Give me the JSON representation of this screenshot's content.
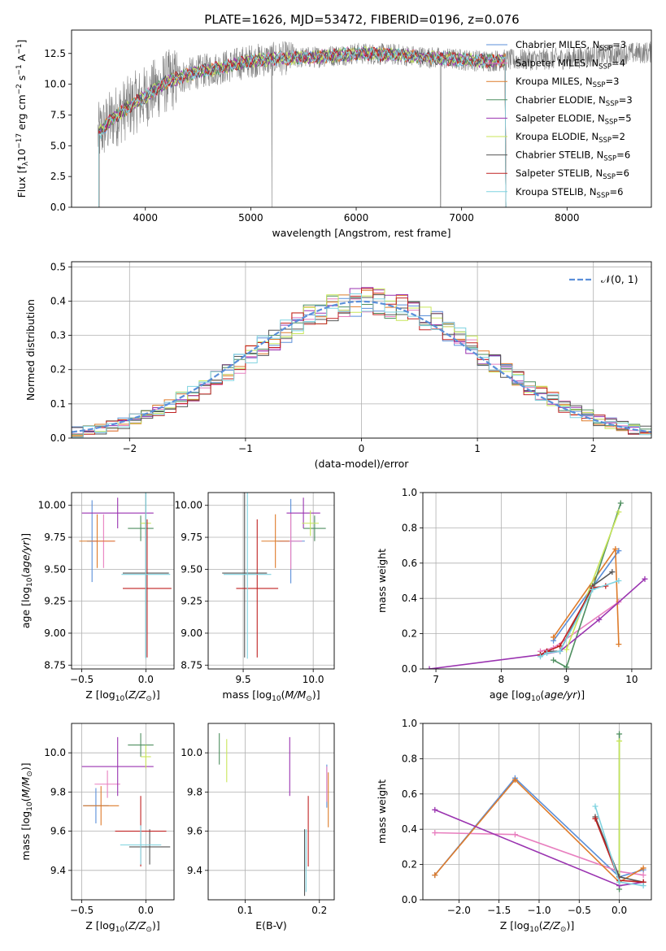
{
  "figure": {
    "title": "PLATE=1626, MJD=53472, FIBERID=0196, z=0.076"
  },
  "colors": {
    "chabrier_miles": "#5b8fd9",
    "salpeter_miles": "#e87fbf",
    "kroupa_miles": "#de7b2a",
    "chabrier_elodie": "#4f8f60",
    "salpeter_elodie": "#9a33b0",
    "kroupa_elodie": "#c8e65a",
    "chabrier_stelib": "#555555",
    "salpeter_stelib": "#c02222",
    "kroupa_stelib": "#7fd3e0",
    "data": "#808080"
  },
  "chart_data": [
    {
      "id": "spectrum",
      "type": "line",
      "title": "PLATE=1626, MJD=53472, FIBERID=0196, z=0.076",
      "xlabel": "wavelength [Angstrom, rest frame]",
      "ylabel_parts": [
        "Flux [f",
        "λ",
        "10",
        "−17",
        " erg cm",
        "−2",
        " s",
        "−1",
        " A",
        "−1",
        "]"
      ],
      "xlim": [
        3300,
        8800
      ],
      "ylim": [
        0,
        14.4
      ],
      "xticks": [
        4000,
        5000,
        6000,
        7000,
        8000
      ],
      "yticks": [
        0.0,
        2.5,
        5.0,
        7.5,
        10.0,
        12.5
      ],
      "grid": false,
      "legend_position": "right",
      "continuum_x": [
        3550,
        3700,
        3900,
        4000,
        4200,
        4500,
        4800,
        5000,
        5300,
        5600,
        6000,
        6400,
        6800,
        7200,
        7600,
        8000,
        8400,
        8800
      ],
      "continuum_y": [
        5.9,
        7.3,
        8.5,
        9.0,
        10.2,
        11.0,
        11.5,
        11.9,
        12.1,
        12.2,
        12.5,
        12.4,
        12.1,
        11.9,
        12.0,
        12.1,
        12.4,
        12.6
      ],
      "series": [
        {
          "name": "Chabrier MILES",
          "n_ssp": "3",
          "color_key": "chabrier_miles"
        },
        {
          "name": "Salpeter MILES",
          "n_ssp": "4",
          "color_key": "salpeter_miles"
        },
        {
          "name": "Kroupa MILES",
          "n_ssp": "3",
          "color_key": "kroupa_miles"
        },
        {
          "name": "Chabrier ELODIE",
          "n_ssp": "3",
          "color_key": "chabrier_elodie"
        },
        {
          "name": "Salpeter ELODIE",
          "n_ssp": "5",
          "color_key": "salpeter_elodie"
        },
        {
          "name": "Kroupa ELODIE",
          "n_ssp": "2",
          "color_key": "kroupa_elodie"
        },
        {
          "name": "Chabrier STELIB",
          "n_ssp": "6",
          "color_key": "chabrier_stelib"
        },
        {
          "name": "Salpeter STELIB",
          "n_ssp": "6",
          "color_key": "salpeter_stelib"
        },
        {
          "name": "Kroupa STELIB",
          "n_ssp": "6",
          "color_key": "kroupa_stelib"
        }
      ]
    },
    {
      "id": "residuals",
      "type": "line",
      "xlabel": "(data-model)/error",
      "ylabel": "Normed distribution",
      "xlim": [
        -2.5,
        2.5
      ],
      "ylim": [
        0,
        0.515
      ],
      "xticks": [
        -2,
        -1,
        0,
        1,
        2
      ],
      "yticks": [
        0.0,
        0.1,
        0.2,
        0.3,
        0.4,
        0.5
      ],
      "grid": true,
      "legend_position": "top-right",
      "legend": "𝒩(0, 1)",
      "bin_width": 0.1,
      "bin_start": -2.5,
      "normal_curve": {
        "mean": 0,
        "sigma": 1
      },
      "base": [
        0.018,
        0.021,
        0.027,
        0.035,
        0.044,
        0.054,
        0.066,
        0.079,
        0.095,
        0.113,
        0.13,
        0.15,
        0.172,
        0.194,
        0.218,
        0.242,
        0.266,
        0.29,
        0.312,
        0.333,
        0.352,
        0.368,
        0.381,
        0.391,
        0.397,
        0.399,
        0.397,
        0.391,
        0.381,
        0.368,
        0.352,
        0.333,
        0.312,
        0.29,
        0.266,
        0.242,
        0.218,
        0.194,
        0.172,
        0.15,
        0.13,
        0.113,
        0.095,
        0.079,
        0.066,
        0.054,
        0.044,
        0.035,
        0.027,
        0.021
      ]
    },
    {
      "id": "age_vs_Z",
      "type": "scatter",
      "xlabel": "Z [log10(Z/Z⊙)]",
      "ylabel": "age  [log10(age/yr)]",
      "xlim": [
        -0.58,
        0.22
      ],
      "ylim": [
        8.72,
        10.1
      ],
      "xticks": [
        -0.5,
        0.0
      ],
      "yticks": [
        8.75,
        9.0,
        9.25,
        9.5,
        9.75,
        10.0
      ],
      "grid": true,
      "points": [
        {
          "model": "chabrier_miles",
          "x": -0.42,
          "xerr": 0.04,
          "y": 9.72,
          "yerr": 0.32
        },
        {
          "model": "salpeter_miles",
          "x": -0.33,
          "xerr": 0.09,
          "y": 9.72,
          "yerr": 0.21
        },
        {
          "model": "kroupa_miles",
          "x": -0.38,
          "xerr": 0.14,
          "y": 9.72,
          "yerr": 0.21
        },
        {
          "model": "chabrier_elodie",
          "x": -0.04,
          "xerr": 0.1,
          "y": 9.82,
          "yerr": 0.1
        },
        {
          "model": "salpeter_elodie",
          "x": -0.22,
          "xerr": 0.28,
          "y": 9.94,
          "yerr": 0.12
        },
        {
          "model": "kroupa_elodie",
          "x": 0.0,
          "xerr": 0.04,
          "y": 9.86,
          "yerr": 0.1
        },
        {
          "model": "chabrier_stelib",
          "x": 0.0,
          "xerr": 0.18,
          "y": 9.47,
          "yerr": 0.66
        },
        {
          "model": "salpeter_stelib",
          "x": 0.01,
          "xerr": 0.19,
          "y": 9.35,
          "yerr": 0.54
        },
        {
          "model": "kroupa_stelib",
          "x": 0.0,
          "xerr": 0.19,
          "y": 9.46,
          "yerr": 0.66
        }
      ]
    },
    {
      "id": "age_vs_mass",
      "type": "scatter",
      "xlabel": "mass [log10(M/M⊙)]",
      "ylabel": "",
      "xlim": [
        9.25,
        10.15
      ],
      "ylim": [
        8.72,
        10.1
      ],
      "xticks": [
        9.5,
        10.0
      ],
      "yticks": [
        8.75,
        9.0,
        9.25,
        9.5,
        9.75,
        10.0
      ],
      "grid": true,
      "points": [
        {
          "model": "chabrier_miles",
          "x": 9.84,
          "xerr": 0.1,
          "y": 9.72,
          "yerr": 0.33
        },
        {
          "model": "salpeter_miles",
          "x": 9.84,
          "xerr": 0.08,
          "y": 9.72,
          "yerr": 0.22
        },
        {
          "model": "kroupa_miles",
          "x": 9.73,
          "xerr": 0.1,
          "y": 9.72,
          "yerr": 0.21
        },
        {
          "model": "chabrier_elodie",
          "x": 10.01,
          "xerr": 0.08,
          "y": 9.82,
          "yerr": 0.1
        },
        {
          "model": "salpeter_elodie",
          "x": 9.93,
          "xerr": 0.12,
          "y": 9.94,
          "yerr": 0.12
        },
        {
          "model": "kroupa_elodie",
          "x": 9.98,
          "xerr": 0.06,
          "y": 9.86,
          "yerr": 0.1
        },
        {
          "model": "chabrier_stelib",
          "x": 9.51,
          "xerr": 0.16,
          "y": 9.47,
          "yerr": 0.66
        },
        {
          "model": "salpeter_stelib",
          "x": 9.6,
          "xerr": 0.15,
          "y": 9.35,
          "yerr": 0.54
        },
        {
          "model": "kroupa_stelib",
          "x": 9.53,
          "xerr": 0.17,
          "y": 9.46,
          "yerr": 0.66
        }
      ]
    },
    {
      "id": "mass_weight_vs_age",
      "type": "line",
      "xlabel": "age  [log10(age/yr)]",
      "ylabel": "mass weight",
      "xlim": [
        6.8,
        10.3
      ],
      "ylim": [
        0,
        1.0
      ],
      "xticks": [
        7,
        8,
        9,
        10
      ],
      "yticks": [
        0.0,
        0.2,
        0.4,
        0.6,
        0.8,
        1.0
      ],
      "grid": true,
      "series": [
        {
          "model": "chabrier_miles",
          "x": [
            8.8,
            9.8
          ],
          "y": [
            0.16,
            0.67
          ]
        },
        {
          "model": "salpeter_miles",
          "x": [
            8.6,
            8.8,
            9.8
          ],
          "y": [
            0.1,
            0.12,
            0.38
          ]
        },
        {
          "model": "kroupa_miles",
          "x": [
            8.8,
            9.75,
            9.8
          ],
          "y": [
            0.18,
            0.68,
            0.14
          ]
        },
        {
          "model": "chabrier_elodie",
          "x": [
            8.8,
            9.0,
            9.83
          ],
          "y": [
            0.05,
            0.01,
            0.94
          ]
        },
        {
          "model": "salpeter_elodie",
          "x": [
            6.9,
            8.6,
            8.9,
            9.5,
            10.2
          ],
          "y": [
            0.0,
            0.08,
            0.1,
            0.28,
            0.51
          ]
        },
        {
          "model": "kroupa_elodie",
          "x": [
            9.0,
            9.8
          ],
          "y": [
            0.11,
            0.89
          ]
        },
        {
          "model": "chabrier_stelib",
          "x": [
            8.6,
            8.7,
            8.9,
            9.4,
            9.7
          ],
          "y": [
            0.08,
            0.1,
            0.1,
            0.47,
            0.55
          ]
        },
        {
          "model": "salpeter_stelib",
          "x": [
            8.6,
            8.7,
            8.9,
            9.4,
            9.6
          ],
          "y": [
            0.08,
            0.1,
            0.13,
            0.46,
            0.47
          ]
        },
        {
          "model": "kroupa_stelib",
          "x": [
            8.6,
            8.7,
            8.9,
            9.4,
            9.8
          ],
          "y": [
            0.07,
            0.09,
            0.1,
            0.45,
            0.5
          ]
        }
      ]
    },
    {
      "id": "mass_vs_Z",
      "type": "scatter",
      "xlabel": "Z [log10(Z/Z⊙)]",
      "ylabel": "mass [log10(M/M⊙)]",
      "xlim": [
        -0.58,
        0.22
      ],
      "ylim": [
        9.25,
        10.15
      ],
      "xticks": [
        -0.5,
        0.0
      ],
      "yticks": [
        9.4,
        9.6,
        9.8,
        10.0
      ],
      "grid": true,
      "points": [
        {
          "model": "chabrier_miles",
          "x": -0.39,
          "xerr": 0.1,
          "y": 9.73,
          "yerr": 0.09
        },
        {
          "model": "salpeter_miles",
          "x": -0.3,
          "xerr": 0.1,
          "y": 9.84,
          "yerr": 0.07
        },
        {
          "model": "kroupa_miles",
          "x": -0.35,
          "xerr": 0.14,
          "y": 9.73,
          "yerr": 0.1
        },
        {
          "model": "chabrier_elodie",
          "x": -0.04,
          "xerr": 0.1,
          "y": 10.04,
          "yerr": 0.06
        },
        {
          "model": "salpeter_elodie",
          "x": -0.22,
          "xerr": 0.28,
          "y": 9.93,
          "yerr": 0.15
        },
        {
          "model": "kroupa_elodie",
          "x": 0.0,
          "xerr": 0.04,
          "y": 9.98,
          "yerr": 0.06
        },
        {
          "model": "chabrier_stelib",
          "x": 0.03,
          "xerr": 0.16,
          "y": 9.52,
          "yerr": 0.09
        },
        {
          "model": "salpeter_stelib",
          "x": -0.04,
          "xerr": 0.2,
          "y": 9.6,
          "yerr": 0.18
        },
        {
          "model": "kroupa_stelib",
          "x": -0.04,
          "xerr": 0.16,
          "y": 9.53,
          "yerr": 0.1
        }
      ]
    },
    {
      "id": "mass_vs_ebv",
      "type": "scatter",
      "xlabel": "E(B-V)",
      "ylabel": "",
      "xlim": [
        0.05,
        0.22
      ],
      "ylim": [
        9.25,
        10.15
      ],
      "xticks": [
        0.1,
        0.2
      ],
      "yticks": [
        9.4,
        9.6,
        9.8,
        10.0
      ],
      "grid": true,
      "points": [
        {
          "model": "chabrier_miles",
          "x": 0.21,
          "xerr": 0.0,
          "y": 9.83,
          "yerr": 0.11
        },
        {
          "model": "salpeter_miles",
          "x": 0.21,
          "xerr": 0.0,
          "y": 9.84,
          "yerr": 0.09
        },
        {
          "model": "kroupa_miles",
          "x": 0.212,
          "xerr": 0.0,
          "y": 9.76,
          "yerr": 0.14
        },
        {
          "model": "chabrier_elodie",
          "x": 0.065,
          "xerr": 0.0,
          "y": 10.02,
          "yerr": 0.08
        },
        {
          "model": "salpeter_elodie",
          "x": 0.16,
          "xerr": 0.0,
          "y": 9.93,
          "yerr": 0.15
        },
        {
          "model": "kroupa_elodie",
          "x": 0.075,
          "xerr": 0.0,
          "y": 9.96,
          "yerr": 0.11
        },
        {
          "model": "chabrier_stelib",
          "x": 0.18,
          "xerr": 0.0,
          "y": 9.44,
          "yerr": 0.17
        },
        {
          "model": "salpeter_stelib",
          "x": 0.185,
          "xerr": 0.0,
          "y": 9.6,
          "yerr": 0.18
        },
        {
          "model": "kroupa_stelib",
          "x": 0.182,
          "xerr": 0.0,
          "y": 9.45,
          "yerr": 0.16
        }
      ]
    },
    {
      "id": "mass_weight_vs_Z",
      "type": "line",
      "xlabel": "Z [log10(Z/Z⊙)]",
      "ylabel": "mass weight",
      "xlim": [
        -2.45,
        0.4
      ],
      "ylim": [
        0,
        1.0
      ],
      "xticks": [
        -2.0,
        -1.5,
        -1.0,
        -0.5,
        0.0
      ],
      "yticks": [
        0.0,
        0.2,
        0.4,
        0.6,
        0.8,
        1.0
      ],
      "grid": true,
      "series": [
        {
          "model": "chabrier_miles",
          "x": [
            -2.3,
            -1.3,
            0.0,
            0.3
          ],
          "y": [
            0.14,
            0.69,
            0.13,
            0.17
          ]
        },
        {
          "model": "salpeter_miles",
          "x": [
            -2.3,
            -1.3,
            0.0,
            0.3
          ],
          "y": [
            0.38,
            0.37,
            0.16,
            0.14
          ]
        },
        {
          "model": "kroupa_miles",
          "x": [
            -2.3,
            -1.3,
            0.0,
            0.3
          ],
          "y": [
            0.14,
            0.68,
            0.1,
            0.18
          ]
        },
        {
          "model": "chabrier_elodie",
          "x": [
            0.0,
            0.0
          ],
          "y": [
            0.06,
            0.94
          ]
        },
        {
          "model": "salpeter_elodie",
          "x": [
            -2.3,
            0.0,
            0.3
          ],
          "y": [
            0.51,
            0.08,
            0.1
          ]
        },
        {
          "model": "kroupa_elodie",
          "x": [
            0.0,
            0.0
          ],
          "y": [
            0.1,
            0.9
          ]
        },
        {
          "model": "chabrier_stelib",
          "x": [
            -0.3,
            0.0,
            0.3
          ],
          "y": [
            0.47,
            0.13,
            0.1
          ]
        },
        {
          "model": "salpeter_stelib",
          "x": [
            -0.3,
            0.0,
            0.3
          ],
          "y": [
            0.46,
            0.11,
            0.1
          ]
        },
        {
          "model": "kroupa_stelib",
          "x": [
            -0.3,
            0.0,
            0.3
          ],
          "y": [
            0.53,
            0.1,
            0.08
          ]
        }
      ]
    }
  ]
}
